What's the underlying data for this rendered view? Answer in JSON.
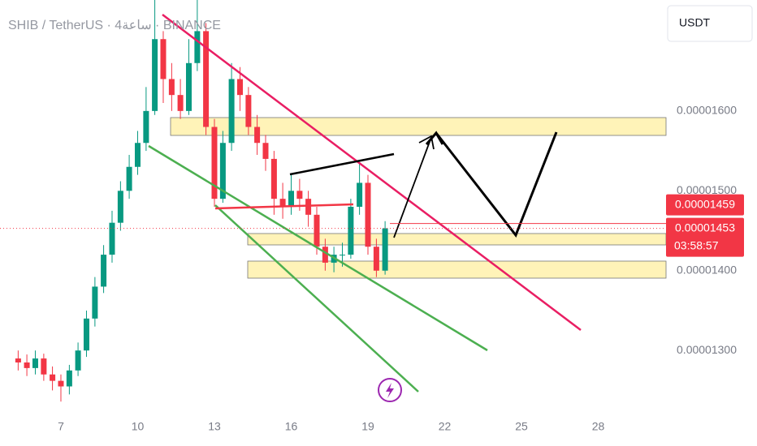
{
  "chart_data": {
    "type": "candlestick",
    "title": "SHIB / TetherUS · 4ساعة · BINANCE",
    "currency": "USDT",
    "x": [
      5.33,
      5.67,
      6,
      6.33,
      6.67,
      7,
      7.33,
      7.67,
      8,
      8.33,
      8.67,
      9,
      9.33,
      9.67,
      10,
      10.33,
      10.67,
      11,
      11.33,
      11.67,
      12,
      12.33,
      12.67,
      13,
      13.33,
      13.67,
      14,
      14.33,
      14.67,
      15,
      15.33,
      15.67,
      16,
      16.33,
      16.67,
      17,
      17.33,
      17.67,
      18,
      18.33,
      18.67,
      19,
      19.33,
      19.67
    ],
    "open": [
      1.29e-05,
      1.285e-05,
      1.278e-05,
      1.29e-05,
      1.27e-05,
      1.262e-05,
      1.255e-05,
      1.275e-05,
      1.3e-05,
      1.34e-05,
      1.38e-05,
      1.42e-05,
      1.46e-05,
      1.5e-05,
      1.53e-05,
      1.56e-05,
      1.6e-05,
      1.69e-05,
      1.64e-05,
      1.62e-05,
      1.6e-05,
      1.66e-05,
      1.7e-05,
      1.58e-05,
      1.49e-05,
      1.56e-05,
      1.64e-05,
      1.62e-05,
      1.58e-05,
      1.56e-05,
      1.54e-05,
      1.49e-05,
      1.48e-05,
      1.5e-05,
      1.49e-05,
      1.47e-05,
      1.43e-05,
      1.41e-05,
      1.42e-05,
      1.42e-05,
      1.48e-05,
      1.51e-05,
      1.43e-05,
      1.4e-05
    ],
    "high": [
      1.3e-05,
      1.295e-05,
      1.3e-05,
      1.296e-05,
      1.28e-05,
      1.27e-05,
      1.282e-05,
      1.31e-05,
      1.35e-05,
      1.392e-05,
      1.432e-05,
      1.475e-05,
      1.512e-05,
      1.545e-05,
      1.575e-05,
      1.63e-05,
      1.739e-05,
      1.7e-05,
      1.66e-05,
      1.64e-05,
      1.69e-05,
      1.739e-05,
      1.71e-05,
      1.59e-05,
      1.575e-05,
      1.66e-05,
      1.655e-05,
      1.63e-05,
      1.595e-05,
      1.57e-05,
      1.55e-05,
      1.51e-05,
      1.52e-05,
      1.515e-05,
      1.5e-05,
      1.48e-05,
      1.44e-05,
      1.43e-05,
      1.435e-05,
      1.49e-05,
      1.535e-05,
      1.52e-05,
      1.44e-05,
      1.462e-05
    ],
    "low": [
      1.275e-05,
      1.268e-05,
      1.27e-05,
      1.262e-05,
      1.25e-05,
      1.236e-05,
      1.245e-05,
      1.268e-05,
      1.292e-05,
      1.33e-05,
      1.372e-05,
      1.41e-05,
      1.45e-05,
      1.49e-05,
      1.52e-05,
      1.55e-05,
      1.595e-05,
      1.61e-05,
      1.6e-05,
      1.59e-05,
      1.595e-05,
      1.65e-05,
      1.57e-05,
      1.48e-05,
      1.485e-05,
      1.55e-05,
      1.6e-05,
      1.57e-05,
      1.545e-05,
      1.525e-05,
      1.47e-05,
      1.465e-05,
      1.47e-05,
      1.475e-05,
      1.455e-05,
      1.42e-05,
      1.4e-05,
      1.398e-05,
      1.405e-05,
      1.415e-05,
      1.47e-05,
      1.42e-05,
      1.392e-05,
      1.395e-05
    ],
    "close": [
      1.285e-05,
      1.278e-05,
      1.29e-05,
      1.27e-05,
      1.262e-05,
      1.255e-05,
      1.275e-05,
      1.3e-05,
      1.34e-05,
      1.38e-05,
      1.42e-05,
      1.46e-05,
      1.5e-05,
      1.53e-05,
      1.56e-05,
      1.6e-05,
      1.69e-05,
      1.64e-05,
      1.62e-05,
      1.6e-05,
      1.66e-05,
      1.7e-05,
      1.58e-05,
      1.49e-05,
      1.56e-05,
      1.64e-05,
      1.62e-05,
      1.58e-05,
      1.56e-05,
      1.54e-05,
      1.49e-05,
      1.48e-05,
      1.5e-05,
      1.49e-05,
      1.47e-05,
      1.43e-05,
      1.41e-05,
      1.42e-05,
      1.42e-05,
      1.48e-05,
      1.51e-05,
      1.43e-05,
      1.4e-05,
      1.453e-05
    ],
    "up_color": "#089981",
    "down_color": "#f23645",
    "xlim": [
      4.62,
      30.65
    ],
    "xticks": [
      7,
      10,
      13,
      16,
      19,
      22,
      25,
      28
    ],
    "ylim": [
      1.221e-05,
      1.739e-05
    ],
    "yticks": [
      {
        "value": 1.3e-05,
        "label": "0.00001300"
      },
      {
        "value": 1.4e-05,
        "label": "0.00001400"
      },
      {
        "value": 1.5e-05,
        "label": "0.00001500"
      },
      {
        "value": 1.6e-05,
        "label": "0.00001600"
      }
    ],
    "alert_price": 1.459e-05,
    "last_price": 1.453e-05,
    "countdown": "03:58:57"
  }
}
